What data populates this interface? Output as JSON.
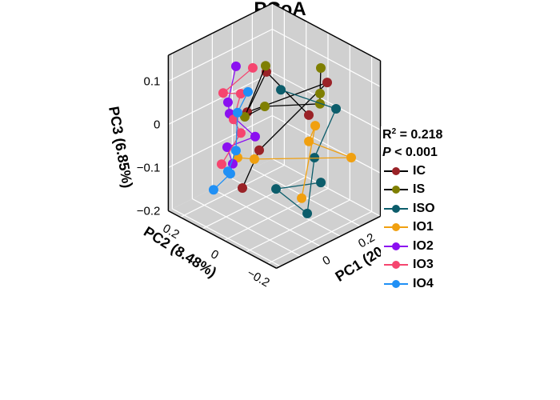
{
  "chart_data": {
    "type": "scatter3d",
    "title": "PCoA",
    "axes": {
      "x": {
        "label": "PC1 (20",
        "range": [
          -0.22,
          0.3
        ],
        "ticks": [
          0,
          0.2
        ],
        "tick_labels": [
          "0",
          "0.2"
        ]
      },
      "y": {
        "label": "PC2 (8.48%)",
        "range": [
          -0.24,
          0.255
        ],
        "ticks": [
          -0.2,
          0,
          0.2
        ],
        "tick_labels": [
          "−0.2",
          "0",
          "0.2"
        ]
      },
      "z": {
        "label": "PC3 (6.85%)",
        "range": [
          -0.2,
          0.16
        ],
        "ticks": [
          -0.2,
          -0.1,
          0,
          0.1
        ],
        "tick_labels": [
          "−0.2",
          "−0.1",
          "0",
          "0.1"
        ]
      }
    },
    "grid": true,
    "background_color": "#d0d0d0",
    "legend_placement": "right",
    "stats": {
      "r2_label": "R",
      "r2_sup": "2",
      "r2_value": " = 0.218",
      "p_label": "P",
      "p_value": " < 0.001"
    },
    "series": [
      {
        "name": "IC",
        "marker_color": "#9a2227",
        "line_color": "#000000",
        "points": [
          [
            0.204,
            0,
            -0.008
          ],
          [
            -0.008,
            0,
            0.141
          ],
          [
            -0.104,
            0,
            0.07
          ],
          [
            0.296,
            0,
            0.046
          ],
          [
            -0.044,
            0,
            -0.032
          ],
          [
            -0.128,
            0,
            -0.1
          ]
        ]
      },
      {
        "name": "IS",
        "marker_color": "#7f7f00",
        "line_color": "#000000",
        "points": [
          [
            -0.012,
            0,
            0.156
          ],
          [
            -0.116,
            0,
            0.062
          ],
          [
            -0.016,
            0,
            0.063
          ],
          [
            0.26,
            0,
            0.005
          ],
          [
            0.26,
            0,
            0.029
          ],
          [
            0.264,
            0,
            0.087
          ]
        ]
      },
      {
        "name": "ISO",
        "marker_color": "#0c5d6b",
        "line_color": "#0c5d6b",
        "points": [
          [
            -0.045,
            -0.1,
            0.135
          ],
          [
            0.231,
            -0.1,
            0.027
          ],
          [
            0.123,
            -0.1,
            -0.061
          ],
          [
            0.087,
            -0.1,
            -0.182
          ],
          [
            -0.069,
            -0.1,
            -0.089
          ],
          [
            0.155,
            -0.1,
            -0.126
          ]
        ]
      },
      {
        "name": "IO1",
        "marker_color": "#f0a010",
        "line_color": "#f0a010",
        "points": [
          [
            0.059,
            -0.1,
            -0.14
          ],
          [
            0.127,
            -0.1,
            0.012
          ],
          [
            0.095,
            -0.1,
            -0.017
          ],
          [
            0.285,
            -0.12,
            -0.093
          ],
          [
            -0.068,
            0,
            -0.047
          ],
          [
            -0.152,
            0,
            -0.024
          ]
        ]
      },
      {
        "name": "IO2",
        "marker_color": "#8b10f0",
        "line_color": "#8b10f0",
        "points": [
          [
            -0.051,
            0.1,
            0.137
          ],
          [
            -0.091,
            0.1,
            0.063
          ],
          [
            -0.083,
            0.1,
            0.035
          ],
          [
            0.045,
            0.1,
            -0.048
          ],
          [
            -0.095,
            0.1,
            -0.04
          ],
          [
            -0.067,
            0.1,
            -0.085
          ]
        ]
      },
      {
        "name": "IO3",
        "marker_color": "#f5456f",
        "line_color": "#f5456f",
        "points": [
          [
            0.033,
            0.1,
            0.114
          ],
          [
            -0.115,
            0.1,
            0.09
          ],
          [
            -0.027,
            0.1,
            0.068
          ],
          [
            -0.063,
            0.1,
            0.017
          ],
          [
            -0.027,
            0.1,
            -0.023
          ],
          [
            -0.123,
            0.1,
            -0.073
          ]
        ]
      },
      {
        "name": "IO4",
        "marker_color": "#2090f5",
        "line_color": "#2090f5",
        "points": [
          [
            0.009,
            0.1,
            0.064
          ],
          [
            -0.043,
            0.1,
            0.028
          ],
          [
            -0.051,
            0.1,
            -0.058
          ],
          [
            -0.091,
            0.1,
            -0.097
          ],
          [
            -0.079,
            0.1,
            -0.105
          ],
          [
            -0.163,
            0.1,
            -0.123
          ]
        ]
      }
    ]
  }
}
